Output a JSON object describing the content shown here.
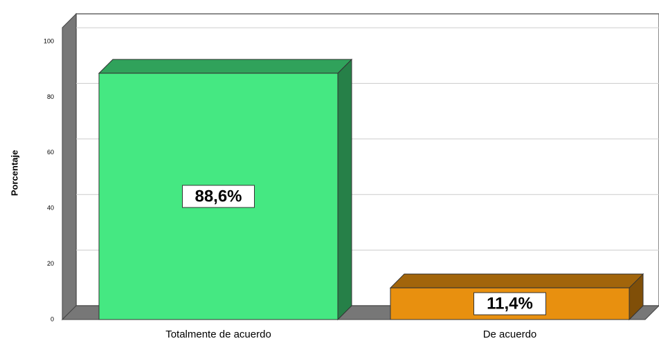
{
  "chart_data": {
    "type": "bar3d",
    "y_label": "Porcentaje",
    "categories": [
      "Totalmente de acuerdo",
      "De acuerdo"
    ],
    "values": [
      88.6,
      11.4
    ],
    "value_labels": [
      "88,6%",
      "11,4%"
    ],
    "colors": [
      "#45e882",
      "#e8900f"
    ],
    "ylim": [
      0,
      105
    ],
    "yticks": [
      0,
      20,
      40,
      60,
      80,
      100
    ],
    "grid": true
  }
}
